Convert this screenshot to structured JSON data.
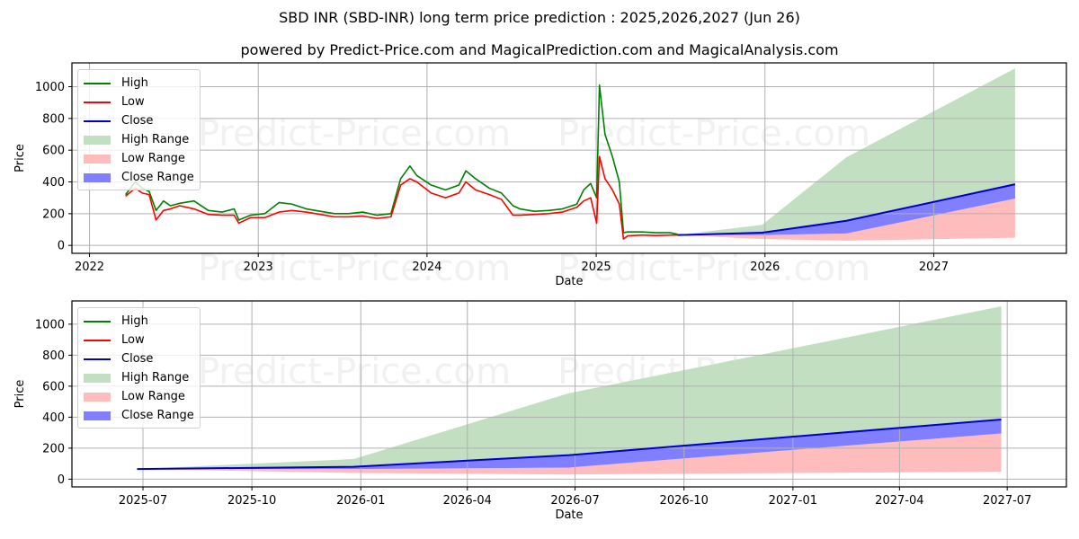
{
  "header": {
    "title": "SBD INR (SBD-INR) long term price prediction : 2025,2026,2027 (Jun 26)",
    "subtitle": "powered by Predict-Price.com and MagicalPrediction.com and MagicalAnalysis.com"
  },
  "watermark": "Predict-Price.com",
  "legend": {
    "items": [
      {
        "label": "High",
        "kind": "line",
        "color": "#008000"
      },
      {
        "label": "Low",
        "kind": "line",
        "color": "#ff0000"
      },
      {
        "label": "Close",
        "kind": "line",
        "color": "#0000cd"
      },
      {
        "label": "High Range",
        "kind": "patch",
        "color": "#c2dfc2"
      },
      {
        "label": "Low Range",
        "kind": "patch",
        "color": "#ffbcbc"
      },
      {
        "label": "Close Range",
        "kind": "patch",
        "color": "#8080ff"
      }
    ]
  },
  "colors": {
    "high": "#008000",
    "low": "#ff0000",
    "close": "#0000cd",
    "high_range": "#c2dfc2",
    "low_range": "#ffbcbc",
    "close_range": "#7f7fff",
    "grid": "#b0b0b0"
  },
  "chart_data": [
    {
      "type": "line",
      "title": "SBD INR (SBD-INR) long term price prediction : 2025,2026,2027 (Jun 26)",
      "xlabel": "Date",
      "ylabel": "Price",
      "ylim": [
        -50,
        1150
      ],
      "xlim": [
        "2021-11-24",
        "2027-10-15"
      ],
      "grid": true,
      "legend_position": "upper left",
      "x_ticks": [
        "2022",
        "2023",
        "2024",
        "2025",
        "2026",
        "2027"
      ],
      "y_ticks": [
        0,
        200,
        400,
        600,
        800,
        1000
      ],
      "historical": {
        "x": [
          "2022-03-20",
          "2022-04-10",
          "2022-04-25",
          "2022-05-10",
          "2022-05-25",
          "2022-06-10",
          "2022-06-25",
          "2022-07-15",
          "2022-08-15",
          "2022-09-15",
          "2022-10-15",
          "2022-11-10",
          "2022-11-20",
          "2022-12-15",
          "2023-01-15",
          "2023-02-15",
          "2023-03-15",
          "2023-04-15",
          "2023-05-15",
          "2023-06-15",
          "2023-07-15",
          "2023-08-15",
          "2023-09-15",
          "2023-10-15",
          "2023-11-05",
          "2023-11-25",
          "2023-12-10",
          "2024-01-10",
          "2024-02-10",
          "2024-03-10",
          "2024-03-25",
          "2024-04-15",
          "2024-05-15",
          "2024-06-10",
          "2024-07-05",
          "2024-07-20",
          "2024-08-20",
          "2024-09-20",
          "2024-10-20",
          "2024-11-20",
          "2024-12-05",
          "2024-12-20",
          "2025-01-02",
          "2025-01-08",
          "2025-01-20",
          "2025-02-05",
          "2025-02-20",
          "2025-03-01",
          "2025-03-10",
          "2025-04-10",
          "2025-05-10",
          "2025-06-10",
          "2025-06-26"
        ],
        "high": [
          320,
          400,
          360,
          340,
          220,
          280,
          250,
          265,
          280,
          220,
          210,
          230,
          160,
          190,
          200,
          270,
          260,
          230,
          215,
          200,
          200,
          210,
          190,
          200,
          420,
          500,
          440,
          380,
          350,
          380,
          470,
          420,
          360,
          330,
          250,
          230,
          215,
          220,
          230,
          260,
          350,
          390,
          300,
          1010,
          700,
          560,
          400,
          80,
          85,
          85,
          80,
          80,
          70
        ],
        "low": [
          310,
          360,
          330,
          320,
          160,
          220,
          230,
          250,
          230,
          195,
          190,
          190,
          140,
          175,
          175,
          210,
          220,
          210,
          195,
          180,
          180,
          185,
          170,
          180,
          380,
          420,
          400,
          330,
          300,
          330,
          400,
          350,
          320,
          290,
          190,
          190,
          195,
          200,
          210,
          240,
          280,
          300,
          140,
          560,
          420,
          350,
          260,
          40,
          60,
          65,
          62,
          65,
          65
        ]
      },
      "forecast": {
        "x": [
          "2025-06-26",
          "2025-12-26",
          "2026-06-26",
          "2027-06-26"
        ],
        "high_range_upper": [
          65,
          130,
          555,
          1115
        ],
        "close": [
          65,
          80,
          155,
          385
        ],
        "close_range_lower": [
          65,
          65,
          75,
          295
        ],
        "low_range_lower": [
          65,
          40,
          30,
          48
        ]
      }
    },
    {
      "type": "line",
      "title": "",
      "xlabel": "Date",
      "ylabel": "Price",
      "ylim": [
        -50,
        1150
      ],
      "xlim": [
        "2025-05-02",
        "2027-08-20"
      ],
      "grid": true,
      "legend_position": "upper left",
      "x_ticks": [
        "2025-07",
        "2025-10",
        "2026-01",
        "2026-04",
        "2026-07",
        "2026-10",
        "2027-01",
        "2027-04",
        "2027-07"
      ],
      "y_ticks": [
        0,
        200,
        400,
        600,
        800,
        1000
      ],
      "forecast": {
        "x": [
          "2025-06-26",
          "2025-12-26",
          "2026-06-26",
          "2027-06-26"
        ],
        "high_range_upper": [
          65,
          130,
          555,
          1115
        ],
        "close": [
          65,
          80,
          155,
          385
        ],
        "close_range_lower": [
          65,
          65,
          75,
          295
        ],
        "low_range_lower": [
          65,
          40,
          30,
          48
        ]
      }
    }
  ]
}
